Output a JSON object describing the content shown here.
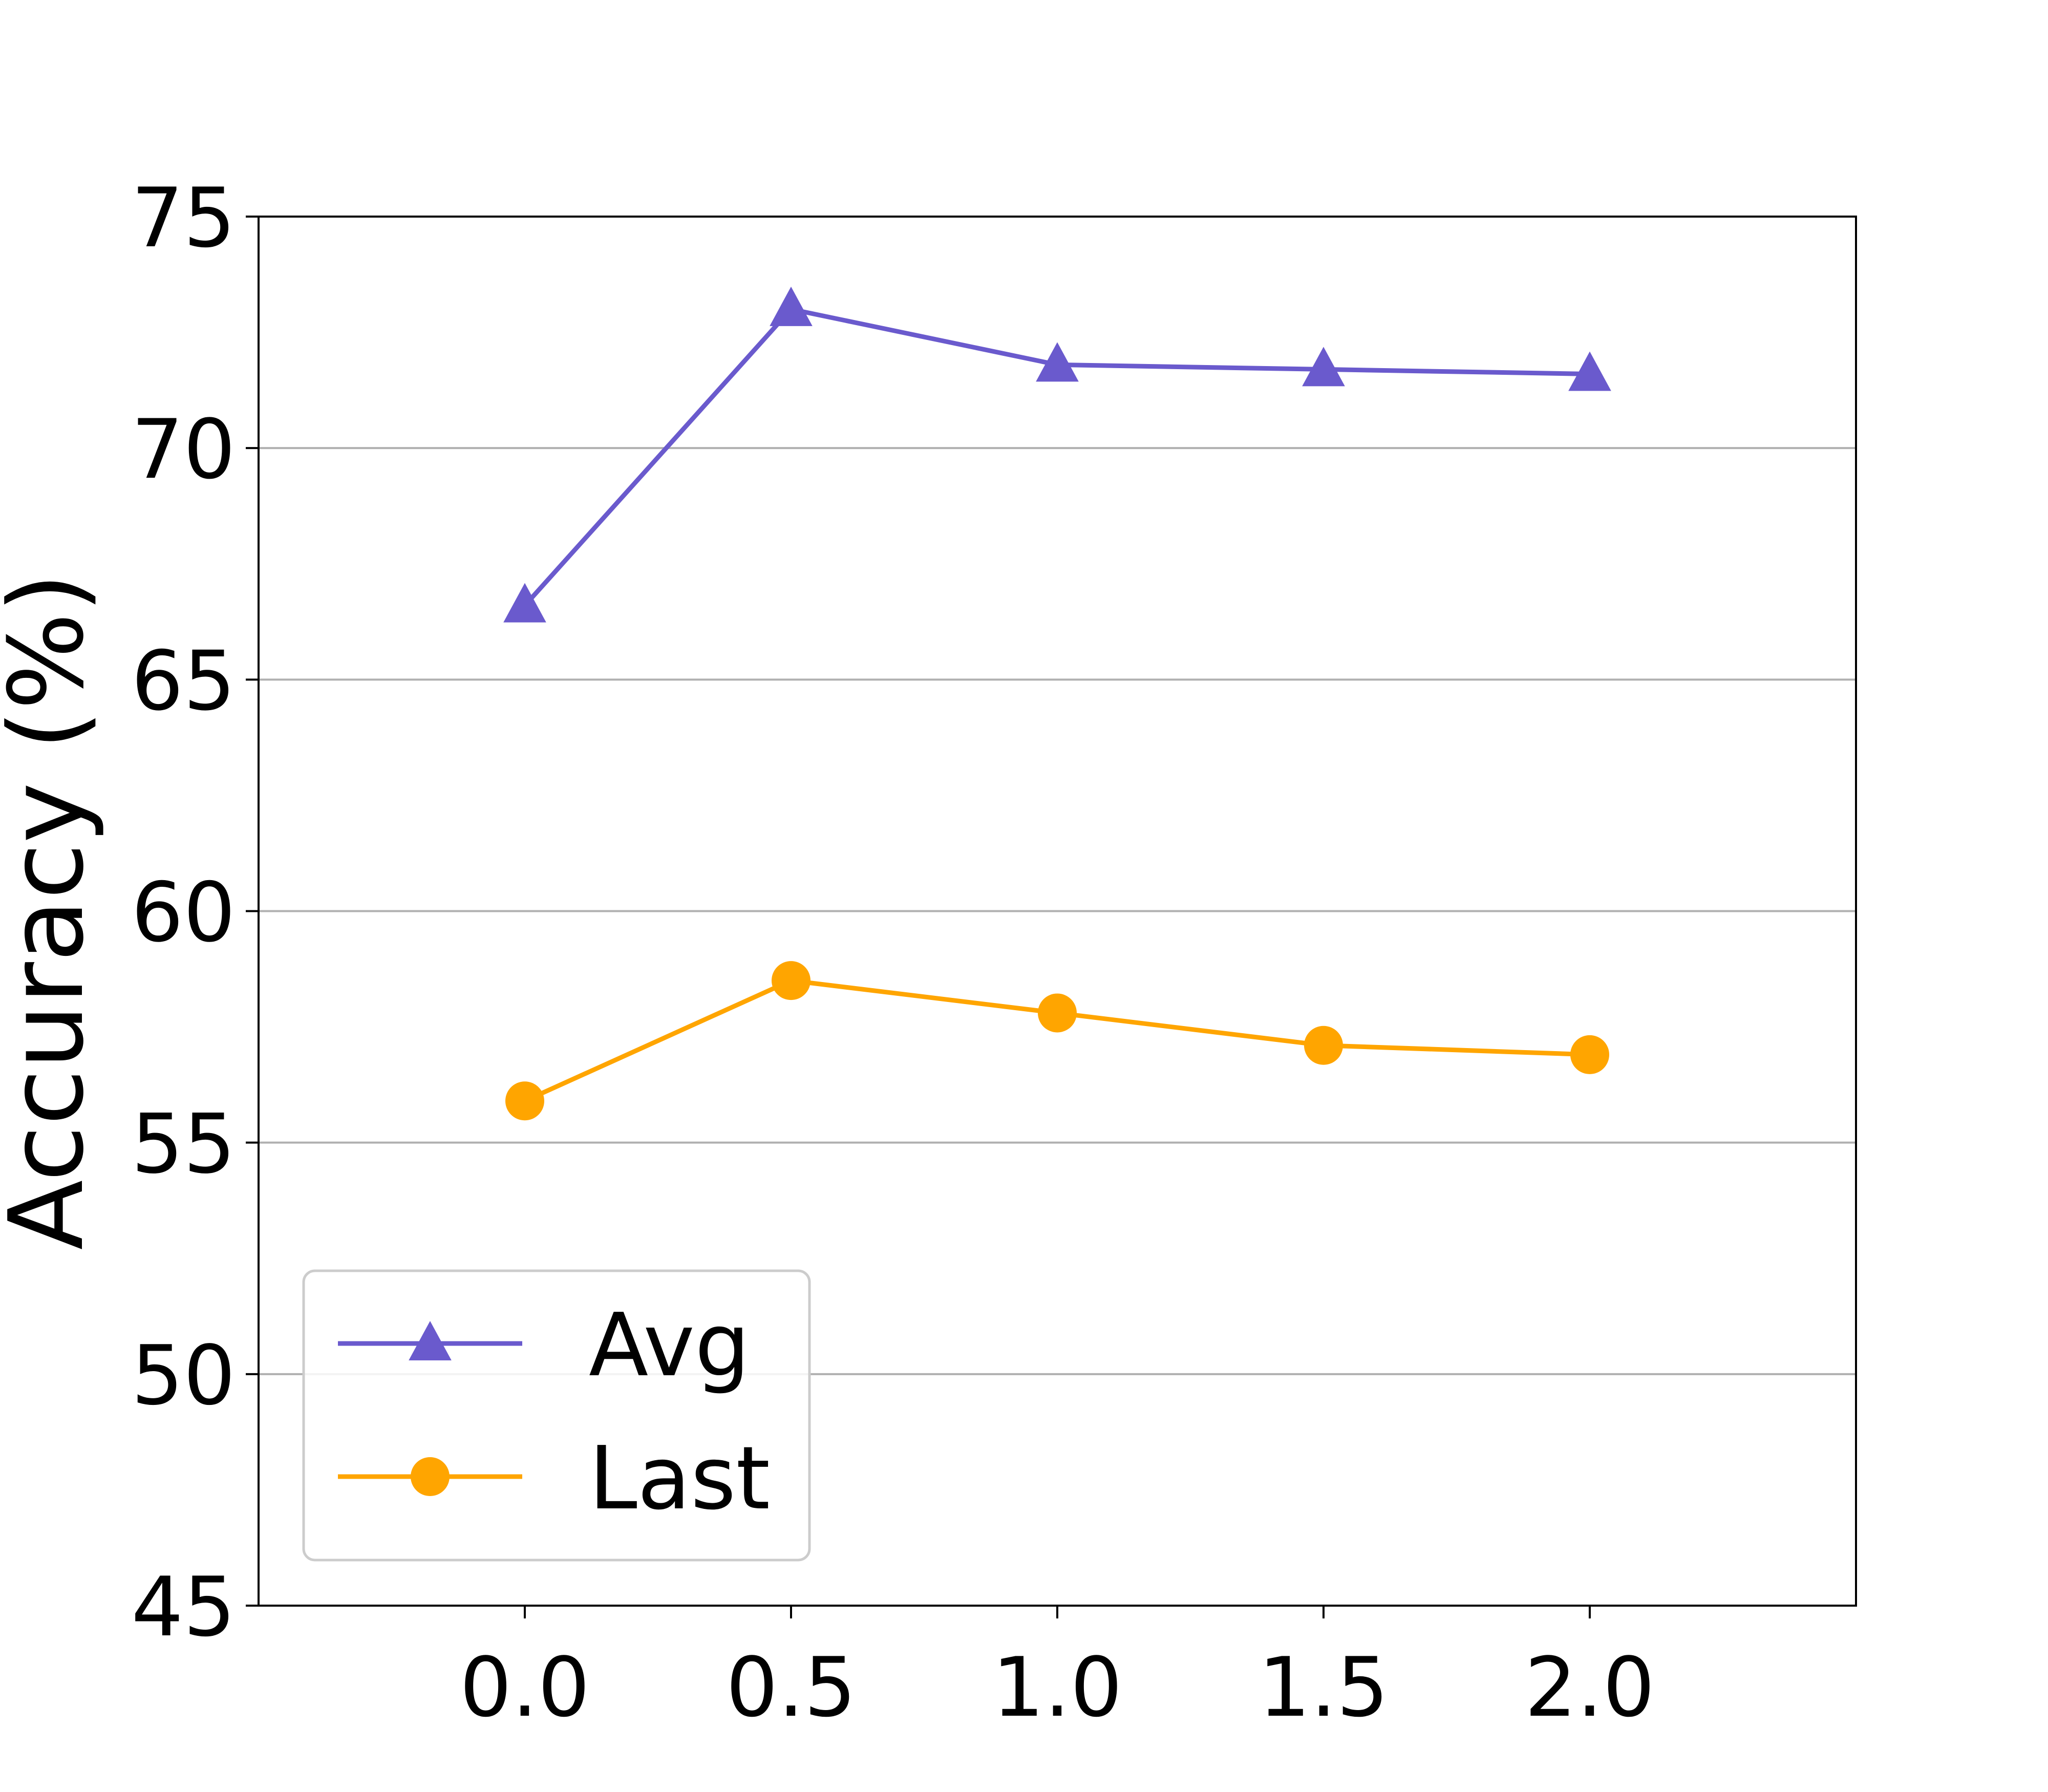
{
  "chart_data": {
    "type": "line",
    "x": [
      0.0,
      0.5,
      1.0,
      1.5,
      2.0
    ],
    "x_tick_labels": [
      "0.0",
      "0.5",
      "1.0",
      "1.5",
      "2.0"
    ],
    "xlim": [
      -0.5,
      2.5
    ],
    "ylim": [
      45,
      75
    ],
    "y_ticks": [
      45,
      50,
      55,
      60,
      65,
      70,
      75
    ],
    "y_tick_labels": [
      "45",
      "50",
      "55",
      "60",
      "65",
      "70",
      "75"
    ],
    "xlabel": "",
    "ylabel": "Accuracy (%)",
    "title": "",
    "grid": "horizontal",
    "legend_position": "lower-left",
    "series": [
      {
        "name": "Avg",
        "values": [
          66.6,
          73.0,
          71.8,
          71.7,
          71.6
        ],
        "color": "#6a5acd",
        "marker": "triangle"
      },
      {
        "name": "Last",
        "values": [
          55.9,
          58.5,
          57.8,
          57.1,
          56.9
        ],
        "color": "#ffa500",
        "marker": "circle"
      }
    ]
  }
}
